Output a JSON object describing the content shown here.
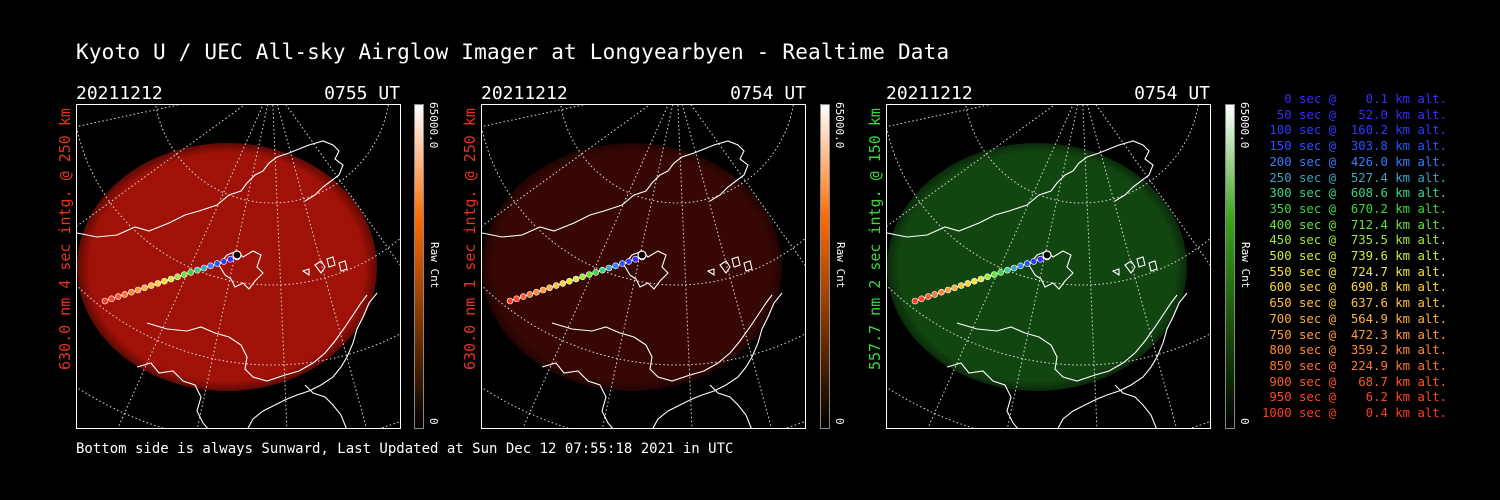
{
  "title": "Kyoto U / UEC All-sky Airglow Imager at Longyearbyen - Realtime Data",
  "footer": "Bottom side is always Sunward, Last Updated at Sun Dec 12 07:55:18 2021 in UTC",
  "panels": [
    {
      "date": "20211212",
      "time": "0755 UT",
      "ylabel": "630.0 nm  4 sec intg. @ 250 km",
      "label_color": "#e8321e",
      "colorbar_max": "65000.0",
      "colorbar_min": "0",
      "colorbar_label": "Raw Cnt",
      "colorbar_top": "#ffffff",
      "colorbar_mid": "#ff6a00",
      "glow_color": "#a81208",
      "glow_opacity": 0.95
    },
    {
      "date": "20211212",
      "time": "0754 UT",
      "ylabel": "630.0 nm  1 sec intg. @ 250 km",
      "label_color": "#e8321e",
      "colorbar_max": "65000.0",
      "colorbar_min": "0",
      "colorbar_label": "Raw Cnt",
      "colorbar_top": "#ffffff",
      "colorbar_mid": "#ff6a00",
      "glow_color": "#3a0704",
      "glow_opacity": 0.95
    },
    {
      "date": "20211212",
      "time": "0754 UT",
      "ylabel": "557.7 nm  2 sec intg. @ 150 km",
      "label_color": "#3bd83b",
      "colorbar_max": "65000.0",
      "colorbar_min": "0",
      "colorbar_label": "Raw Cnt",
      "colorbar_top": "#ffffff",
      "colorbar_mid": "#3aa51a",
      "glow_color": "#134a12",
      "glow_opacity": 0.95
    }
  ],
  "legend": [
    {
      "text": "   0 sec @    0.1 km alt.",
      "color": "#3a2bff"
    },
    {
      "text": "  50 sec @   52.0 km alt.",
      "color": "#3a2bff"
    },
    {
      "text": " 100 sec @  160.2 km alt.",
      "color": "#2a3cff"
    },
    {
      "text": " 150 sec @  303.8 km alt.",
      "color": "#2a55ff"
    },
    {
      "text": " 200 sec @  426.0 km alt.",
      "color": "#3a7cff"
    },
    {
      "text": " 250 sec @  527.4 km alt.",
      "color": "#39a6c8"
    },
    {
      "text": " 300 sec @  608.6 km alt.",
      "color": "#38d48a"
    },
    {
      "text": " 350 sec @  670.2 km alt.",
      "color": "#3bd83b"
    },
    {
      "text": " 400 sec @  712.4 km alt.",
      "color": "#6be23a"
    },
    {
      "text": " 450 sec @  735.5 km alt.",
      "color": "#9fe83a"
    },
    {
      "text": " 500 sec @  739.6 km alt.",
      "color": "#d4ea3a"
    },
    {
      "text": " 550 sec @  724.7 km alt.",
      "color": "#f2e43a"
    },
    {
      "text": " 600 sec @  690.8 km alt.",
      "color": "#ffd63a"
    },
    {
      "text": " 650 sec @  637.6 km alt.",
      "color": "#ffc040"
    },
    {
      "text": " 700 sec @  564.9 km alt.",
      "color": "#ffae3f"
    },
    {
      "text": " 750 sec @  472.3 km alt.",
      "color": "#ff9a3c"
    },
    {
      "text": " 800 sec @  359.2 km alt.",
      "color": "#ff8838"
    },
    {
      "text": " 850 sec @  224.9 km alt.",
      "color": "#ff7634"
    },
    {
      "text": " 900 sec @   68.7 km alt.",
      "color": "#ff5a2c"
    },
    {
      "text": " 950 sec @    6.2 km alt.",
      "color": "#ff4626"
    },
    {
      "text": "1000 sec @    0.4 km alt.",
      "color": "#ff3a22"
    }
  ]
}
